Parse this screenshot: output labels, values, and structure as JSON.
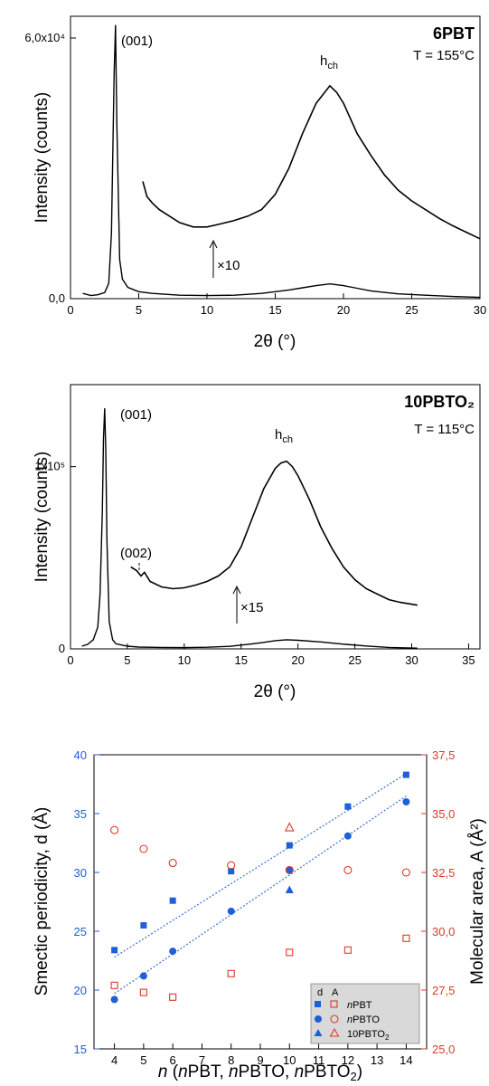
{
  "chart_data": [
    {
      "type": "line",
      "title": "6PBT",
      "subtitle": "T = 155°C",
      "xlabel": "2θ (°)",
      "ylabel": "Intensity (counts)",
      "xlim": [
        0,
        30
      ],
      "ylim": [
        0,
        65000
      ],
      "x_ticks": [
        "0",
        "5",
        "10",
        "15",
        "20",
        "25",
        "30"
      ],
      "y_ticks": [
        "0,0",
        "6,0x10⁴"
      ],
      "annotations": {
        "peak1": "(001)",
        "halo": "h",
        "halo_sub": "ch",
        "mult": "×10"
      },
      "series": [
        {
          "x": [
            0.9,
            1.5,
            2.0,
            2.5,
            2.8,
            3.0,
            3.2,
            3.3,
            3.4,
            3.6,
            3.8,
            4.2,
            5,
            6,
            8,
            10,
            12,
            14,
            16,
            17,
            18,
            19,
            20,
            21,
            22,
            24,
            26,
            28,
            30
          ],
          "values": [
            1200,
            700,
            900,
            1400,
            3500,
            15000,
            52000,
            63000,
            40000,
            9000,
            4500,
            2600,
            1600,
            1200,
            800,
            700,
            800,
            1200,
            2000,
            2500,
            3000,
            3400,
            3000,
            2400,
            1800,
            1100,
            800,
            500,
            300
          ]
        },
        {
          "x": [
            5.3,
            5.6,
            6,
            6.5,
            7,
            8,
            9,
            10,
            11,
            12,
            13,
            14,
            15,
            16,
            17,
            18,
            18.5,
            19,
            19.5,
            20,
            21,
            22,
            23,
            24,
            25,
            26,
            27,
            28,
            29,
            30
          ],
          "values": [
            27000,
            23500,
            22000,
            20500,
            19500,
            17500,
            16500,
            16500,
            17200,
            18000,
            19000,
            20500,
            24000,
            30000,
            38000,
            45000,
            47000,
            49000,
            47500,
            45000,
            38000,
            33000,
            28500,
            25000,
            22500,
            20500,
            18500,
            16800,
            15300,
            13800
          ]
        }
      ]
    },
    {
      "type": "line",
      "title": "10PBTO₂",
      "subtitle": "T = 115°C",
      "xlabel": "2θ (°)",
      "ylabel": "Intensity (counts)",
      "xlim": [
        0,
        36
      ],
      "ylim": [
        0,
        145000
      ],
      "x_ticks": [
        "0",
        "5",
        "10",
        "15",
        "20",
        "25",
        "30",
        "35"
      ],
      "y_ticks": [
        "0",
        "1x10⁵"
      ],
      "annotations": {
        "peak1": "(001)",
        "peak2": "(002)",
        "halo": "h",
        "halo_sub": "ch",
        "mult": "×15"
      },
      "series": [
        {
          "x": [
            1.0,
            1.5,
            2.0,
            2.4,
            2.6,
            2.8,
            2.9,
            3.0,
            3.1,
            3.2,
            3.4,
            3.7,
            4,
            5,
            6,
            8,
            10,
            12,
            14,
            16,
            17,
            18,
            19,
            20,
            22,
            24,
            26,
            28,
            30.5
          ],
          "values": [
            1500,
            2500,
            5000,
            12000,
            30000,
            75000,
            115000,
            132000,
            110000,
            60000,
            15000,
            5000,
            2800,
            1500,
            1000,
            800,
            700,
            900,
            1400,
            2800,
            3600,
            4500,
            5000,
            4700,
            3800,
            2600,
            1600,
            800,
            400
          ]
        },
        {
          "x": [
            5.3,
            5.8,
            6.2,
            6.5,
            7,
            8,
            9,
            10,
            11,
            12,
            13,
            14,
            15,
            16,
            17,
            18,
            18.5,
            19,
            19.5,
            20,
            21,
            22,
            23,
            24,
            25,
            26,
            27,
            28,
            29,
            30.5
          ],
          "values": [
            45000,
            43000,
            40000,
            42000,
            37000,
            34000,
            33000,
            33500,
            35000,
            37000,
            40000,
            45000,
            56000,
            72000,
            88000,
            99000,
            102000,
            103000,
            100000,
            95000,
            82000,
            67000,
            55000,
            45000,
            38000,
            33000,
            30000,
            27000,
            25500,
            24000
          ]
        }
      ]
    },
    {
      "type": "scatter",
      "xlabel": "n (nPBT, nPBTO, nPBTO₂)",
      "ylabel": "Smectic periodicity, d (Å)",
      "y2label": "Molecular area, A (Å²)",
      "xlim": [
        3.3,
        14.7
      ],
      "ylim": [
        15,
        40
      ],
      "y2lim": [
        25,
        37.5
      ],
      "x_ticks": [
        "4",
        "5",
        "6",
        "7",
        "8",
        "9",
        "10",
        "11",
        "12",
        "13",
        "14"
      ],
      "y_ticks": [
        "15",
        "20",
        "25",
        "30",
        "35",
        "40"
      ],
      "y2_ticks": [
        "25,0",
        "27,5",
        "30,0",
        "32,5",
        "35,0",
        "37,5"
      ],
      "legend": {
        "position": "bottom-right",
        "header_d": "d",
        "header_a": "A"
      },
      "colors": {
        "d": "#1f5fd8",
        "A": "#d93a2b",
        "fit": "#3a6fd8"
      },
      "series": [
        {
          "name": "nPBT",
          "axis": "d",
          "marker": "filled-square",
          "x": [
            4,
            5,
            6,
            8,
            10,
            12,
            14
          ],
          "values": [
            23.4,
            25.5,
            27.6,
            30.1,
            32.3,
            35.6,
            38.3
          ]
        },
        {
          "name": "nPBTO",
          "axis": "d",
          "marker": "filled-circle",
          "x": [
            4,
            5,
            6,
            8,
            10,
            12,
            14
          ],
          "values": [
            19.2,
            21.2,
            23.3,
            26.7,
            30.2,
            33.1,
            36.0
          ]
        },
        {
          "name": "10PBTO₂",
          "axis": "d",
          "marker": "filled-triangle",
          "x": [
            10
          ],
          "values": [
            28.5
          ]
        },
        {
          "name": "nPBT",
          "axis": "A",
          "marker": "open-square",
          "x": [
            4,
            5,
            6,
            8,
            10,
            12,
            14
          ],
          "values": [
            27.7,
            27.4,
            27.2,
            28.2,
            29.1,
            29.2,
            29.7
          ]
        },
        {
          "name": "nPBTO",
          "axis": "A",
          "marker": "open-circle",
          "x": [
            4,
            5,
            6,
            8,
            10,
            12,
            14
          ],
          "values": [
            34.3,
            33.5,
            32.9,
            32.8,
            32.6,
            32.6,
            32.5
          ]
        },
        {
          "name": "10PBTO₂",
          "axis": "A",
          "marker": "open-triangle",
          "x": [
            10
          ],
          "values": [
            34.4
          ]
        }
      ],
      "fits": [
        {
          "x": [
            4,
            14
          ],
          "values": [
            22.8,
            38.4
          ]
        },
        {
          "x": [
            4,
            14
          ],
          "values": [
            19.7,
            36.5
          ]
        }
      ]
    }
  ]
}
